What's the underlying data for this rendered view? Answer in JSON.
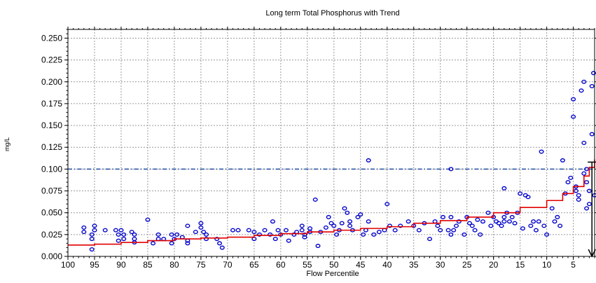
{
  "chart_data": {
    "type": "scatter",
    "title": "Long term Total Phosphorus with Trend",
    "xlabel": "Flow Percentile",
    "ylabel": "mg/L",
    "x_reversed": true,
    "xlim": [
      100,
      1
    ],
    "ylim": [
      0,
      0.26
    ],
    "x_ticks": [
      "100",
      "95",
      "90",
      "85",
      "80",
      "75",
      "70",
      "65",
      "60",
      "55",
      "50",
      "45",
      "40",
      "35",
      "30",
      "25",
      "20",
      "15",
      "10",
      "5"
    ],
    "x_tick_values": [
      100,
      95,
      90,
      85,
      80,
      75,
      70,
      65,
      60,
      55,
      50,
      45,
      40,
      35,
      30,
      25,
      20,
      15,
      10,
      5
    ],
    "y_ticks": [
      "0.000",
      "0.025",
      "0.050",
      "0.075",
      "0.100",
      "0.125",
      "0.150",
      "0.175",
      "0.200",
      "0.225",
      "0.250"
    ],
    "y_tick_values": [
      0,
      0.025,
      0.05,
      0.075,
      0.1,
      0.125,
      0.15,
      0.175,
      0.2,
      0.225,
      0.25
    ],
    "grid": true,
    "threshold": 0.1,
    "colors": {
      "points": "#0000cc",
      "trend": "#e00000",
      "threshold": "#003399",
      "arrow": "#000000",
      "grid": "#999999"
    },
    "points": [
      [
        97,
        0.028
      ],
      [
        97,
        0.033
      ],
      [
        95.5,
        0.008
      ],
      [
        95.5,
        0.02
      ],
      [
        95.5,
        0.025
      ],
      [
        95,
        0.03
      ],
      [
        95,
        0.035
      ],
      [
        93,
        0.03
      ],
      [
        91,
        0.03
      ],
      [
        90.5,
        0.025
      ],
      [
        90.5,
        0.018
      ],
      [
        90,
        0.03
      ],
      [
        89.5,
        0.025
      ],
      [
        89.5,
        0.02
      ],
      [
        88,
        0.028
      ],
      [
        87.5,
        0.02
      ],
      [
        87.5,
        0.025
      ],
      [
        87.5,
        0.016
      ],
      [
        85,
        0.042
      ],
      [
        84,
        0.015
      ],
      [
        83,
        0.025
      ],
      [
        83,
        0.02
      ],
      [
        82,
        0.02
      ],
      [
        80.5,
        0.025
      ],
      [
        80.5,
        0.015
      ],
      [
        80,
        0.02
      ],
      [
        79.5,
        0.025
      ],
      [
        78.5,
        0.022
      ],
      [
        77.5,
        0.035
      ],
      [
        77.5,
        0.018
      ],
      [
        77.5,
        0.015
      ],
      [
        76,
        0.028
      ],
      [
        75,
        0.038
      ],
      [
        75,
        0.033
      ],
      [
        74.5,
        0.028
      ],
      [
        74,
        0.02
      ],
      [
        74,
        0.025
      ],
      [
        72,
        0.02
      ],
      [
        71.5,
        0.015
      ],
      [
        71,
        0.01
      ],
      [
        69,
        0.03
      ],
      [
        68,
        0.03
      ],
      [
        66,
        0.03
      ],
      [
        65,
        0.028
      ],
      [
        65,
        0.02
      ],
      [
        64,
        0.025
      ],
      [
        63,
        0.03
      ],
      [
        62,
        0.025
      ],
      [
        61.5,
        0.04
      ],
      [
        61,
        0.02
      ],
      [
        60.5,
        0.03
      ],
      [
        60,
        0.025
      ],
      [
        59,
        0.03
      ],
      [
        58.5,
        0.018
      ],
      [
        57.5,
        0.025
      ],
      [
        57,
        0.028
      ],
      [
        56,
        0.035
      ],
      [
        56,
        0.03
      ],
      [
        55.5,
        0.025
      ],
      [
        55.5,
        0.022
      ],
      [
        54.5,
        0.028
      ],
      [
        54.5,
        0.032
      ],
      [
        53.5,
        0.065
      ],
      [
        53,
        0.012
      ],
      [
        52.5,
        0.028
      ],
      [
        51.5,
        0.033
      ],
      [
        51,
        0.045
      ],
      [
        50.5,
        0.038
      ],
      [
        50,
        0.035
      ],
      [
        49.5,
        0.025
      ],
      [
        49,
        0.03
      ],
      [
        48.5,
        0.038
      ],
      [
        48,
        0.055
      ],
      [
        47.5,
        0.05
      ],
      [
        47,
        0.04
      ],
      [
        47,
        0.035
      ],
      [
        46.5,
        0.03
      ],
      [
        45.5,
        0.045
      ],
      [
        45,
        0.048
      ],
      [
        44.5,
        0.025
      ],
      [
        44,
        0.03
      ],
      [
        43.5,
        0.04
      ],
      [
        43.5,
        0.11
      ],
      [
        42.5,
        0.025
      ],
      [
        41.5,
        0.028
      ],
      [
        40.5,
        0.03
      ],
      [
        40,
        0.06
      ],
      [
        39.5,
        0.035
      ],
      [
        38.5,
        0.03
      ],
      [
        37.5,
        0.035
      ],
      [
        36,
        0.04
      ],
      [
        35,
        0.035
      ],
      [
        34,
        0.03
      ],
      [
        33,
        0.038
      ],
      [
        32,
        0.02
      ],
      [
        31,
        0.04
      ],
      [
        30.5,
        0.035
      ],
      [
        30,
        0.03
      ],
      [
        29.5,
        0.045
      ],
      [
        28.5,
        0.03
      ],
      [
        28,
        0.025
      ],
      [
        28,
        0.1
      ],
      [
        28,
        0.045
      ],
      [
        27.5,
        0.03
      ],
      [
        27,
        0.035
      ],
      [
        26.5,
        0.04
      ],
      [
        25.5,
        0.025
      ],
      [
        25,
        0.045
      ],
      [
        24.5,
        0.038
      ],
      [
        24,
        0.035
      ],
      [
        23.5,
        0.03
      ],
      [
        23,
        0.042
      ],
      [
        22.5,
        0.025
      ],
      [
        22,
        0.04
      ],
      [
        21,
        0.05
      ],
      [
        20.5,
        0.035
      ],
      [
        20,
        0.045
      ],
      [
        19.5,
        0.04
      ],
      [
        19,
        0.038
      ],
      [
        18.5,
        0.035
      ],
      [
        18,
        0.045
      ],
      [
        18,
        0.04
      ],
      [
        18,
        0.078
      ],
      [
        17.5,
        0.05
      ],
      [
        17,
        0.04
      ],
      [
        16.5,
        0.045
      ],
      [
        16,
        0.038
      ],
      [
        15.5,
        0.05
      ],
      [
        15,
        0.072
      ],
      [
        14.5,
        0.032
      ],
      [
        14,
        0.07
      ],
      [
        13.5,
        0.068
      ],
      [
        13,
        0.035
      ],
      [
        12.5,
        0.04
      ],
      [
        12,
        0.03
      ],
      [
        11.5,
        0.04
      ],
      [
        11,
        0.12
      ],
      [
        10.5,
        0.035
      ],
      [
        10,
        0.025
      ],
      [
        9,
        0.055
      ],
      [
        8.5,
        0.04
      ],
      [
        8,
        0.045
      ],
      [
        7.5,
        0.035
      ],
      [
        7,
        0.11
      ],
      [
        6.5,
        0.072
      ],
      [
        6,
        0.085
      ],
      [
        5.5,
        0.09
      ],
      [
        5,
        0.16
      ],
      [
        5,
        0.18
      ],
      [
        4.5,
        0.075
      ],
      [
        4.5,
        0.08
      ],
      [
        4,
        0.065
      ],
      [
        4,
        0.07
      ],
      [
        3.5,
        0.19
      ],
      [
        3,
        0.2
      ],
      [
        3,
        0.13
      ],
      [
        3,
        0.095
      ],
      [
        2.5,
        0.1
      ],
      [
        2.5,
        0.085
      ],
      [
        2.5,
        0.055
      ],
      [
        2,
        0.075
      ],
      [
        2,
        0.06
      ],
      [
        1.5,
        0.14
      ],
      [
        1.5,
        0.195
      ],
      [
        1.2,
        0.21
      ],
      [
        1,
        0.07
      ]
    ],
    "trend": [
      [
        100,
        0.013
      ],
      [
        95,
        0.014
      ],
      [
        90,
        0.016
      ],
      [
        85,
        0.018
      ],
      [
        80,
        0.02
      ],
      [
        75,
        0.021
      ],
      [
        70,
        0.022
      ],
      [
        65,
        0.024
      ],
      [
        60,
        0.026
      ],
      [
        55,
        0.028
      ],
      [
        50,
        0.03
      ],
      [
        45,
        0.032
      ],
      [
        40,
        0.034
      ],
      [
        35,
        0.038
      ],
      [
        30,
        0.041
      ],
      [
        25,
        0.045
      ],
      [
        20,
        0.05
      ],
      [
        15,
        0.056
      ],
      [
        10,
        0.064
      ],
      [
        7,
        0.072
      ],
      [
        5,
        0.08
      ],
      [
        3,
        0.092
      ],
      [
        2,
        0.102
      ],
      [
        1,
        0.111
      ]
    ],
    "arrow": {
      "x": 1.5,
      "y_from": 0.108,
      "y_to": 0.0
    }
  }
}
